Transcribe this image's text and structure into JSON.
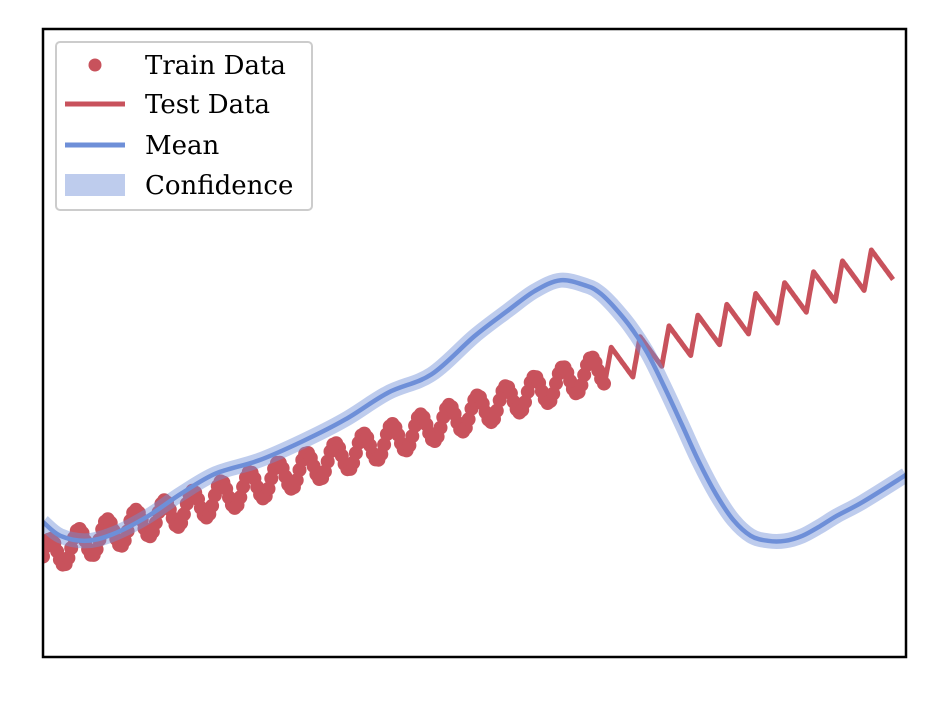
{
  "chart_data": {
    "type": "line",
    "title": "",
    "xlabel": "",
    "ylabel": "",
    "xlim": [
      0,
      1
    ],
    "ylim": [
      0,
      1
    ],
    "grid": false,
    "axes_ticks": false,
    "legend_position": "top-left",
    "series": [
      {
        "name": "Train Data",
        "style": "scatter",
        "color": "#c8525c",
        "x_range": [
          0.0,
          0.65
        ],
        "n_points": 200,
        "trend": "linear rise y = 0.16 + 0.46*x with seasonal wiggle (amplitude ~0.025, period ~0.033)"
      },
      {
        "name": "Test Data",
        "style": "line",
        "color": "#c8525c",
        "x_range": [
          0.65,
          0.985
        ],
        "trend": "continues linear rise with sawtooth seasonal wiggle (amplitude ~0.03, period ~0.0335)"
      },
      {
        "name": "Mean",
        "style": "line",
        "color": "#6e8fd8",
        "x": [
          0.0,
          0.02,
          0.05,
          0.08,
          0.12,
          0.16,
          0.2,
          0.25,
          0.3,
          0.35,
          0.4,
          0.45,
          0.5,
          0.54,
          0.57,
          0.6,
          0.63,
          0.645,
          0.66,
          0.68,
          0.7,
          0.72,
          0.74,
          0.76,
          0.78,
          0.8,
          0.82,
          0.84,
          0.86,
          0.88,
          0.9,
          0.92,
          0.95,
          1.0
        ],
        "y": [
          0.215,
          0.193,
          0.185,
          0.195,
          0.223,
          0.26,
          0.292,
          0.313,
          0.343,
          0.378,
          0.421,
          0.45,
          0.511,
          0.553,
          0.583,
          0.6,
          0.591,
          0.58,
          0.56,
          0.527,
          0.485,
          0.43,
          0.371,
          0.311,
          0.259,
          0.218,
          0.193,
          0.185,
          0.185,
          0.193,
          0.208,
          0.225,
          0.247,
          0.29
        ]
      },
      {
        "name": "Confidence",
        "style": "band",
        "color": "#6e8fd8",
        "half_width": 0.008
      }
    ],
    "legend": [
      "Train Data",
      "Test Data",
      "Mean",
      "Confidence"
    ]
  }
}
